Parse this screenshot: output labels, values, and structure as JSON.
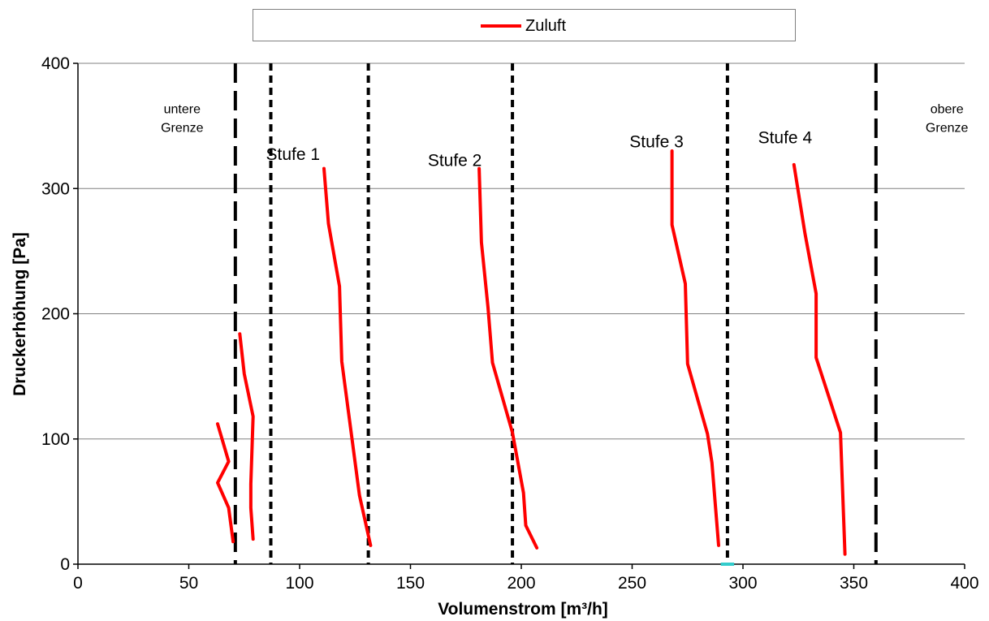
{
  "chart_data": {
    "type": "line",
    "xlabel": "Volumenstrom [m³/h]",
    "ylabel": "Druckerhöhung [Pa]",
    "xlim": [
      0,
      400
    ],
    "ylim": [
      0,
      400
    ],
    "x_ticks": [
      0,
      50,
      100,
      150,
      200,
      250,
      300,
      350,
      400
    ],
    "y_ticks": [
      0,
      100,
      200,
      300,
      400
    ],
    "x_tick_labels": [
      "0",
      "50",
      "100",
      "150",
      "200",
      "250",
      "300",
      "350",
      "400"
    ],
    "y_tick_labels": [
      "0",
      "100",
      "200",
      "300",
      "400"
    ],
    "grid": "horizontal",
    "legend": {
      "position": "top",
      "entries": [
        "Zuluft"
      ]
    },
    "colors": {
      "series": "#ff0000",
      "grid": "#808080",
      "axis": "#000000",
      "marker": "#33cccc"
    },
    "series": [
      {
        "name": "Zuluft",
        "segments": [
          [
            [
              79,
              20
            ],
            [
              78,
              45
            ],
            [
              78,
              64
            ],
            [
              79,
              118
            ],
            [
              75,
              152
            ],
            [
              73,
              184
            ]
          ],
          [
            [
              70,
              18
            ],
            [
              68,
              45
            ],
            [
              63,
              65
            ],
            [
              68,
              82
            ],
            [
              63,
              112
            ]
          ],
          [
            [
              132,
              15
            ],
            [
              127,
              55
            ],
            [
              119,
              162
            ],
            [
              118,
              222
            ],
            [
              113,
              272
            ],
            [
              111,
              316
            ]
          ],
          [
            [
              207,
              13
            ],
            [
              202,
              31
            ],
            [
              201,
              57
            ],
            [
              196,
              105
            ],
            [
              187,
              161
            ],
            [
              185,
              205
            ],
            [
              182,
              257
            ],
            [
              181,
              316
            ]
          ],
          [
            [
              289,
              15
            ],
            [
              286,
              81
            ],
            [
              284,
              104
            ],
            [
              275,
              160
            ],
            [
              274,
              224
            ],
            [
              268,
              271
            ],
            [
              268,
              330
            ]
          ],
          [
            [
              346,
              8
            ],
            [
              344,
              105
            ],
            [
              333,
              165
            ],
            [
              333,
              216
            ],
            [
              328,
              264
            ],
            [
              323,
              319
            ]
          ]
        ]
      }
    ],
    "reference_lines": [
      {
        "x": 71,
        "style": "long-dash"
      },
      {
        "x": 87,
        "style": "short-dash"
      },
      {
        "x": 131,
        "style": "short-dash"
      },
      {
        "x": 196,
        "style": "short-dash"
      },
      {
        "x": 293,
        "style": "short-dash"
      },
      {
        "x": 360,
        "style": "long-dash"
      }
    ],
    "axis_marker": {
      "x_from": 290,
      "x_to": 296,
      "y": 0
    },
    "annotations": [
      {
        "id": "untere",
        "lines": [
          "untere",
          "Grenze"
        ],
        "x": 47,
        "y": 360,
        "size": "small"
      },
      {
        "id": "obere",
        "lines": [
          "obere",
          "Grenze"
        ],
        "x": 392,
        "y": 360,
        "size": "small"
      },
      {
        "id": "stufe1",
        "lines": [
          "Stufe 1"
        ],
        "x": 97,
        "y": 323,
        "size": "large"
      },
      {
        "id": "stufe2",
        "lines": [
          "Stufe 2"
        ],
        "x": 170,
        "y": 318,
        "size": "large"
      },
      {
        "id": "stufe3",
        "lines": [
          "Stufe 3"
        ],
        "x": 261,
        "y": 333,
        "size": "large"
      },
      {
        "id": "stufe4",
        "lines": [
          "Stufe 4"
        ],
        "x": 319,
        "y": 336,
        "size": "large"
      }
    ]
  }
}
